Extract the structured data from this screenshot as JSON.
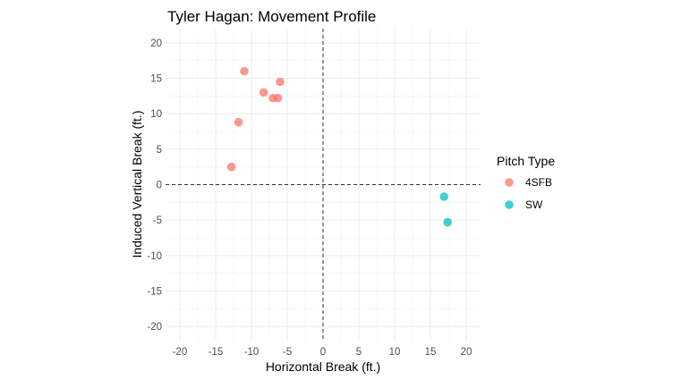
{
  "chart_data": {
    "type": "scatter",
    "title": "Tyler Hagan: Movement Profile",
    "xlabel": "Horizontal Break (ft.)",
    "ylabel": "Induced Vertical Break (ft.)",
    "xlim": [
      -22,
      22
    ],
    "ylim": [
      -22,
      22
    ],
    "x_ticks": [
      -20,
      -15,
      -10,
      -5,
      0,
      5,
      10,
      15,
      20
    ],
    "y_ticks": [
      -20,
      -15,
      -10,
      -5,
      0,
      5,
      10,
      15,
      20
    ],
    "grid": true,
    "reference_lines": {
      "x": 0,
      "y": 0,
      "style": "dashed"
    },
    "legend": {
      "title": "Pitch Type",
      "position": "right"
    },
    "series": [
      {
        "name": "4SFB",
        "color": "#F8766D",
        "points": [
          {
            "x": -11.0,
            "y": 16.0
          },
          {
            "x": -6.0,
            "y": 14.5
          },
          {
            "x": -8.3,
            "y": 13.0
          },
          {
            "x": -7.0,
            "y": 12.2
          },
          {
            "x": -6.3,
            "y": 12.2
          },
          {
            "x": -11.8,
            "y": 8.8
          },
          {
            "x": -12.8,
            "y": 2.5
          }
        ]
      },
      {
        "name": "SW",
        "color": "#00BFC4",
        "points": [
          {
            "x": 16.9,
            "y": -1.7
          },
          {
            "x": 17.4,
            "y": -5.3
          }
        ]
      }
    ]
  }
}
